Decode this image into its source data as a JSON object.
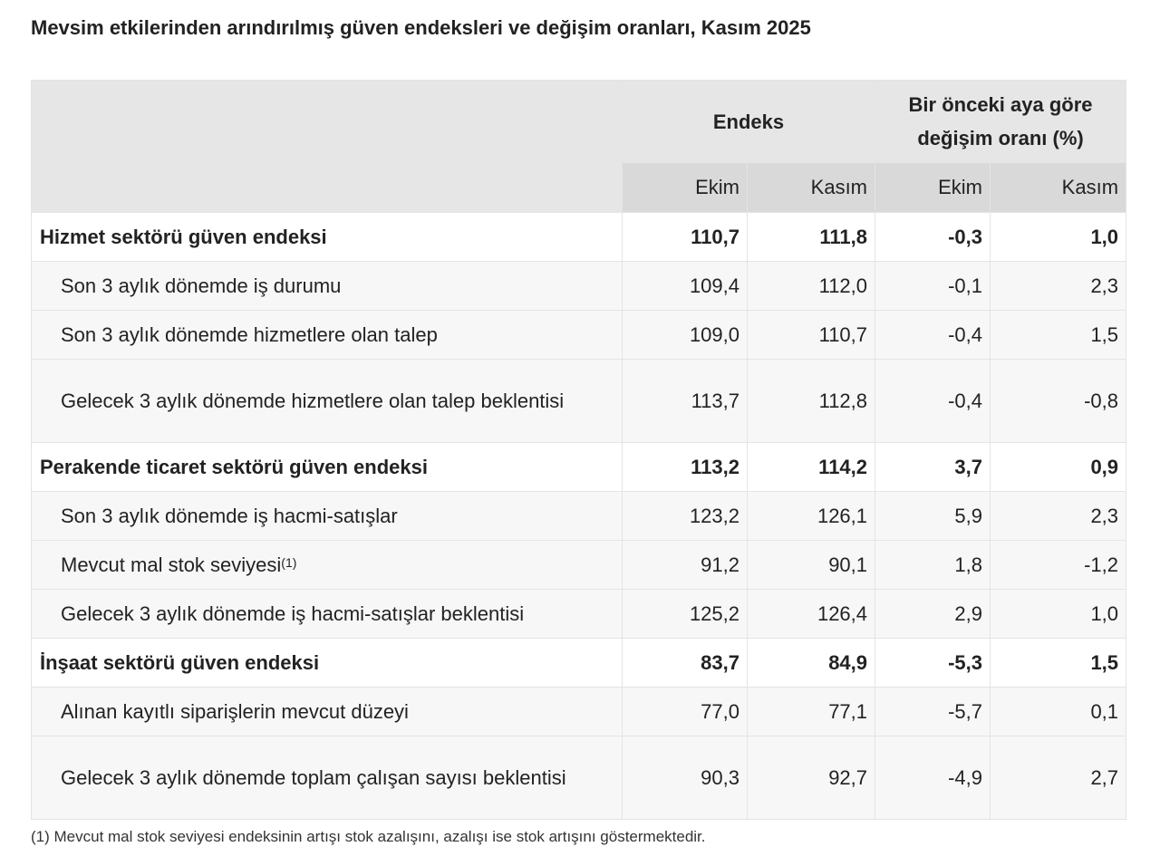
{
  "title": "Mevsim etkilerinden arındırılmış güven endeksleri ve değişim oranları, Kasım 2025",
  "header": {
    "group_index": "Endeks",
    "group_change_line1": "Bir önceki aya göre",
    "group_change_line2": "değişim oranı (%)",
    "sub_ekim": "Ekim",
    "sub_kasim": "Kasım"
  },
  "rows": [
    {
      "label": "Hizmet sektörü güven endeksi",
      "idx_ekim": "110,7",
      "idx_kasim": "111,8",
      "chg_ekim": "-0,3",
      "chg_kasim": "1,0"
    },
    {
      "label": "Son 3 aylık dönemde iş durumu",
      "idx_ekim": "109,4",
      "idx_kasim": "112,0",
      "chg_ekim": "-0,1",
      "chg_kasim": "2,3"
    },
    {
      "label": "Son 3 aylık dönemde hizmetlere olan talep",
      "idx_ekim": "109,0",
      "idx_kasim": "110,7",
      "chg_ekim": "-0,4",
      "chg_kasim": "1,5"
    },
    {
      "label": "Gelecek 3 aylık dönemde hizmetlere olan talep beklentisi",
      "idx_ekim": "113,7",
      "idx_kasim": "112,8",
      "chg_ekim": "-0,4",
      "chg_kasim": "-0,8"
    },
    {
      "label": "Perakende ticaret sektörü güven endeksi",
      "idx_ekim": "113,2",
      "idx_kasim": "114,2",
      "chg_ekim": "3,7",
      "chg_kasim": "0,9"
    },
    {
      "label": "Son 3 aylık dönemde iş hacmi-satışlar",
      "idx_ekim": "123,2",
      "idx_kasim": "126,1",
      "chg_ekim": "5,9",
      "chg_kasim": "2,3"
    },
    {
      "label": "Mevcut mal stok seviyesi",
      "note": "(1)",
      "idx_ekim": "91,2",
      "idx_kasim": "90,1",
      "chg_ekim": "1,8",
      "chg_kasim": "-1,2"
    },
    {
      "label": "Gelecek 3 aylık dönemde iş hacmi-satışlar beklentisi",
      "idx_ekim": "125,2",
      "idx_kasim": "126,4",
      "chg_ekim": "2,9",
      "chg_kasim": "1,0"
    },
    {
      "label": "İnşaat sektörü güven endeksi",
      "idx_ekim": "83,7",
      "idx_kasim": "84,9",
      "chg_ekim": "-5,3",
      "chg_kasim": "1,5"
    },
    {
      "label": "Alınan kayıtlı siparişlerin mevcut düzeyi",
      "idx_ekim": "77,0",
      "idx_kasim": "77,1",
      "chg_ekim": "-5,7",
      "chg_kasim": "0,1"
    },
    {
      "label": "Gelecek 3 aylık dönemde toplam çalışan sayısı beklentisi",
      "idx_ekim": "90,3",
      "idx_kasim": "92,7",
      "chg_ekim": "-4,9",
      "chg_kasim": "2,7"
    }
  ],
  "footnote": "(1) Mevcut mal stok seviyesi endeksinin artışı stok azalışını, azalışı ise stok artışını göstermektedir."
}
